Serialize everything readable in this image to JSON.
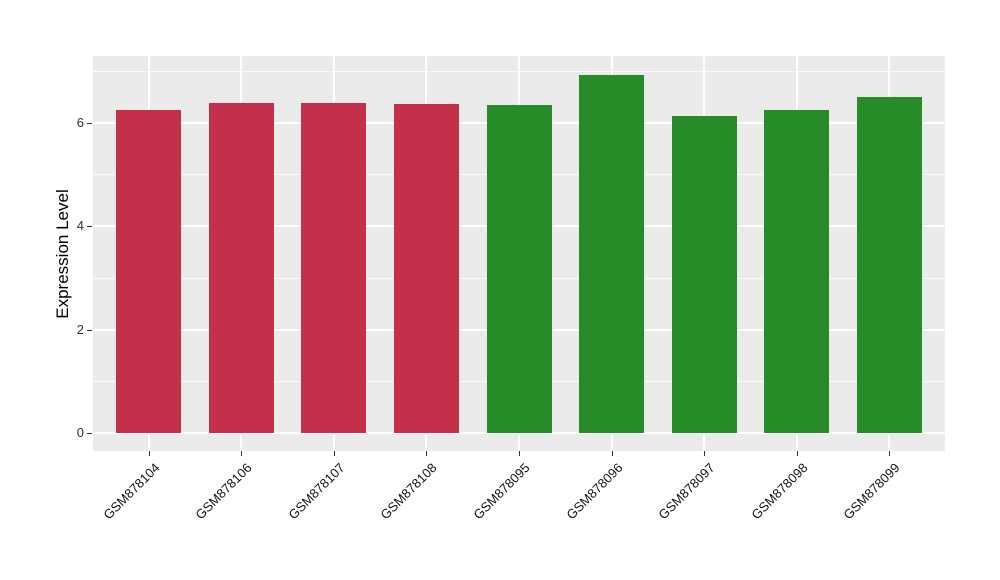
{
  "figure": {
    "background": "#FFFFFF"
  },
  "chart_data": {
    "type": "bar",
    "title": "",
    "xlabel": "",
    "ylabel": "Expression Level",
    "categories": [
      "GSM878104",
      "GSM878106",
      "GSM878107",
      "GSM878108",
      "GSM878095",
      "GSM878096",
      "GSM878097",
      "GSM878098",
      "GSM878099"
    ],
    "values": [
      6.24,
      6.39,
      6.38,
      6.36,
      6.35,
      6.92,
      6.12,
      6.25,
      6.49
    ],
    "bar_colors": [
      "#C23149",
      "#C23149",
      "#C23149",
      "#C23149",
      "#278C27",
      "#278C27",
      "#278C27",
      "#278C27",
      "#278C27"
    ],
    "groups": [
      {
        "name": "red-group",
        "color": "#C23149",
        "categories": [
          "GSM878104",
          "GSM878106",
          "GSM878107",
          "GSM878108"
        ]
      },
      {
        "name": "green-group",
        "color": "#278C27",
        "categories": [
          "GSM878095",
          "GSM878096",
          "GSM878097",
          "GSM878098",
          "GSM878099"
        ]
      }
    ],
    "yticks": [
      0,
      2,
      4,
      6
    ],
    "minor_gridlines": [
      1,
      3,
      5,
      7
    ],
    "ylim": [
      -0.35,
      7.29
    ],
    "grid": true,
    "legend": "none",
    "panel_background": "#EBEBEB",
    "gridline_color": "#FFFFFF",
    "bar_width_ratio": 0.7
  }
}
